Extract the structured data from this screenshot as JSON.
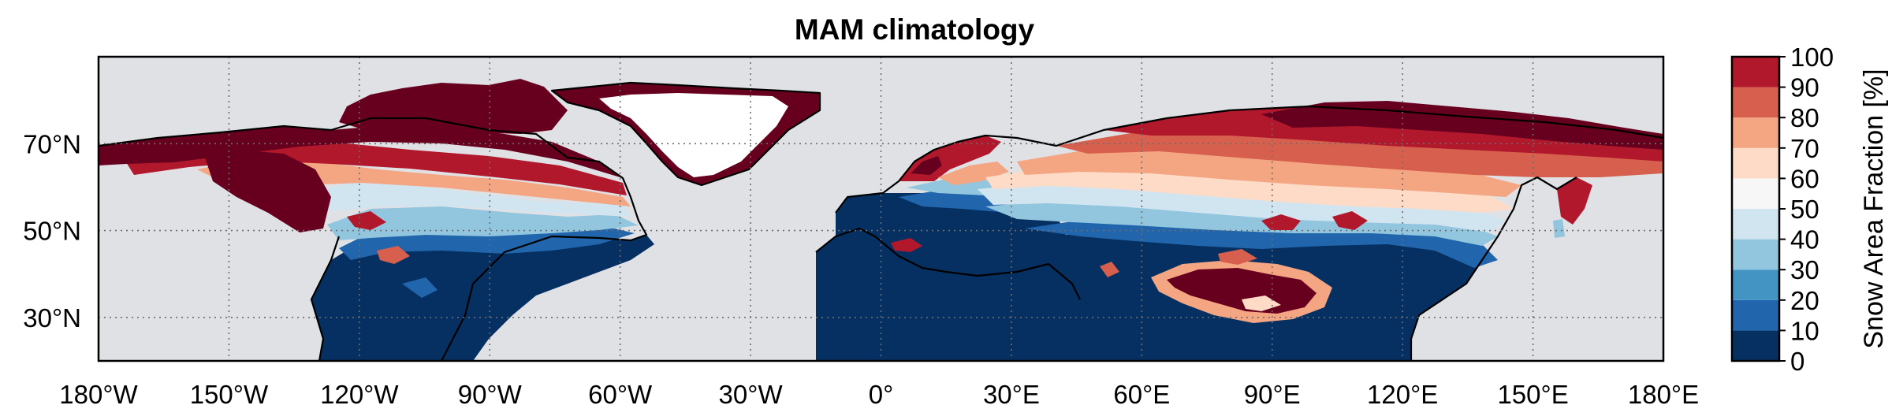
{
  "chart_data": {
    "type": "heatmap",
    "title": "MAM climatology",
    "map_extent": {
      "lon": [
        -180,
        180
      ],
      "lat": [
        20,
        90
      ]
    },
    "x_ticks": [
      {
        "lon": -180,
        "label": "180°W"
      },
      {
        "lon": -150,
        "label": "150°W"
      },
      {
        "lon": -120,
        "label": "120°W"
      },
      {
        "lon": -90,
        "label": "90°W"
      },
      {
        "lon": -60,
        "label": "60°W"
      },
      {
        "lon": -30,
        "label": "30°W"
      },
      {
        "lon": 0,
        "label": "0°"
      },
      {
        "lon": 30,
        "label": "30°E"
      },
      {
        "lon": 60,
        "label": "60°E"
      },
      {
        "lon": 90,
        "label": "90°E"
      },
      {
        "lon": 120,
        "label": "120°E"
      },
      {
        "lon": 150,
        "label": "150°E"
      },
      {
        "lon": 180,
        "label": "180°E"
      }
    ],
    "y_ticks": [
      {
        "lat": 30,
        "label": "30°N"
      },
      {
        "lat": 50,
        "label": "50°N"
      },
      {
        "lat": 70,
        "label": "70°N"
      }
    ],
    "gridlines": "dotted",
    "colorbar": {
      "label": "Snow Area Fraction [%]",
      "levels": [
        0,
        10,
        20,
        30,
        40,
        50,
        60,
        70,
        80,
        90,
        100
      ],
      "tick_labels": [
        "0",
        "10",
        "20",
        "30",
        "40",
        "50",
        "60",
        "70",
        "80",
        "90",
        "100"
      ],
      "colors": [
        "#053061",
        "#2166ac",
        "#4393c3",
        "#92c5de",
        "#d1e5f0",
        "#f7f7f7",
        "#fddbc7",
        "#f4a582",
        "#d6604d",
        "#b2182b",
        "#67001f"
      ],
      "placement": "right"
    },
    "missing_color": "#dfe1e5",
    "land_regions": [
      {
        "name": "north-america",
        "lon": [
          -168,
          -55
        ],
        "lat": [
          20,
          72
        ],
        "snow_min": 0,
        "snow_max": 100
      },
      {
        "name": "canadian-archipelago",
        "lon": [
          -122,
          -62
        ],
        "lat": [
          70,
          83
        ],
        "snow_min": 90,
        "snow_max": 100
      },
      {
        "name": "greenland",
        "lon": [
          -55,
          -18
        ],
        "lat": [
          60,
          83
        ],
        "snow_min": 90,
        "snow_max": 100
      },
      {
        "name": "europe",
        "lon": [
          -10,
          40
        ],
        "lat": [
          36,
          71
        ],
        "snow_min": 0,
        "snow_max": 95
      },
      {
        "name": "asia",
        "lon": [
          40,
          180
        ],
        "lat": [
          20,
          78
        ],
        "snow_min": 0,
        "snow_max": 100
      },
      {
        "name": "tibetan-plateau",
        "lon": [
          75,
          105
        ],
        "lat": [
          28,
          38
        ],
        "snow_min": 30,
        "snow_max": 100
      }
    ]
  }
}
